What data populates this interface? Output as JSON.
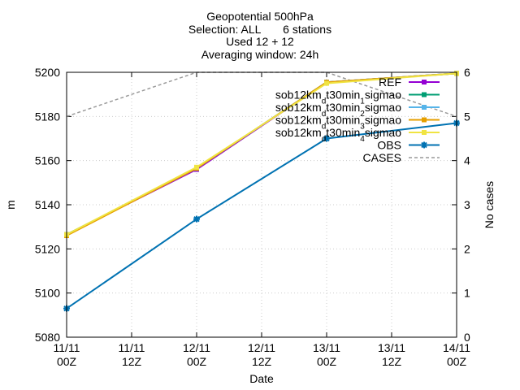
{
  "chart_data": {
    "type": "line",
    "title_lines": [
      "Geopotential 500hPa",
      "Selection: ALL       6 stations",
      "Used 12 + 12",
      "Averaging window: 24h"
    ],
    "xlabel": "Date",
    "ylabel": "m",
    "y2label": "No cases",
    "x": [
      0,
      24,
      48,
      72
    ],
    "xlim": [
      0,
      72
    ],
    "ylim": [
      5080,
      5200
    ],
    "y2lim": [
      0,
      6
    ],
    "xticks": [
      {
        "x": 0,
        "line1": "11/11",
        "line2": "00Z"
      },
      {
        "x": 12,
        "line1": "11/11",
        "line2": "12Z"
      },
      {
        "x": 24,
        "line1": "12/11",
        "line2": "00Z"
      },
      {
        "x": 36,
        "line1": "12/11",
        "line2": "12Z"
      },
      {
        "x": 48,
        "line1": "13/11",
        "line2": "00Z"
      },
      {
        "x": 60,
        "line1": "13/11",
        "line2": "12Z"
      },
      {
        "x": 72,
        "line1": "14/11",
        "line2": "00Z"
      }
    ],
    "yticks": [
      "5080",
      "5100",
      "5120",
      "5140",
      "5160",
      "5180",
      "5200"
    ],
    "y2ticks": [
      "0",
      "1",
      "2",
      "3",
      "4",
      "5",
      "6"
    ],
    "grid": true,
    "legend_position": "top-right",
    "series": [
      {
        "name": "REF",
        "color": "#9400d3",
        "marker": "square",
        "axis": "y",
        "values": [
          5126.5,
          5156,
          5195.5,
          5199.5
        ]
      },
      {
        "name_parts": [
          "sob12km",
          "d",
          "t30min",
          "1",
          "sigmao"
        ],
        "color": "#009e73",
        "marker": "square",
        "axis": "y",
        "values": [
          5126.5,
          5156.5,
          5195.5,
          5199.5
        ]
      },
      {
        "name_parts": [
          "sob12km",
          "d",
          "t30min",
          "2",
          "sigmao"
        ],
        "color": "#56b4e9",
        "marker": "square",
        "axis": "y",
        "values": [
          5126.5,
          5156.5,
          5195.5,
          5199.5
        ]
      },
      {
        "name_parts": [
          "sob12km",
          "d",
          "t30min",
          "3",
          "sigmao"
        ],
        "color": "#e69f00",
        "marker": "square",
        "axis": "y",
        "values": [
          5126,
          5156.5,
          5195.5,
          5199.5
        ]
      },
      {
        "name_parts": [
          "sob12km",
          "d",
          "t30min",
          "4",
          "sigmao"
        ],
        "color": "#f0e442",
        "marker": "square",
        "axis": "y",
        "values": [
          5126.5,
          5157,
          5195,
          5199.5
        ]
      },
      {
        "name": "OBS",
        "color": "#0072b2",
        "marker": "star",
        "axis": "y",
        "values": [
          5093,
          5133.5,
          5170,
          5177
        ]
      },
      {
        "name": "CASES",
        "color": "#999999",
        "dashed": true,
        "marker": "none",
        "axis": "y2",
        "values": [
          5,
          6,
          6,
          5
        ]
      }
    ]
  }
}
